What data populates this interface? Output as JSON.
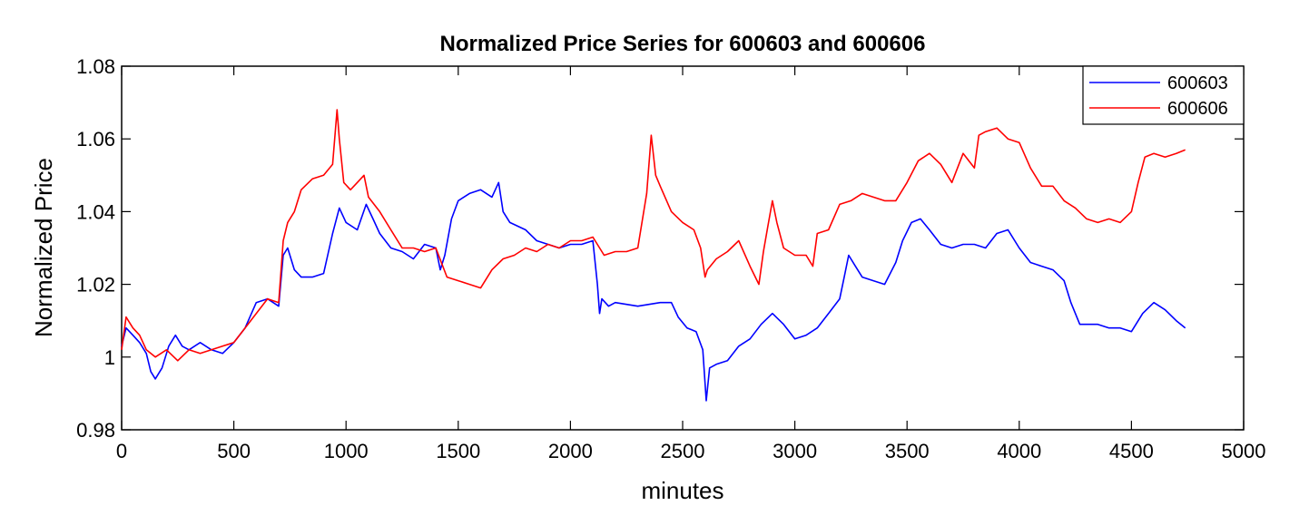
{
  "chart_data": {
    "type": "line",
    "title": "Normalized Price Series for 600603 and 600606",
    "xlabel": "minutes",
    "ylabel": "Normalized Price",
    "xlim": [
      0,
      5000
    ],
    "ylim": [
      0.98,
      1.08
    ],
    "xticks": [
      0,
      500,
      1000,
      1500,
      2000,
      2500,
      3000,
      3500,
      4000,
      4500,
      5000
    ],
    "xtick_labels": [
      "0",
      "500",
      "1000",
      "1500",
      "2000",
      "2500",
      "3000",
      "3500",
      "4000",
      "4500",
      "5000"
    ],
    "yticks": [
      0.98,
      1.0,
      1.02,
      1.04,
      1.06,
      1.08
    ],
    "ytick_labels": [
      "0.98",
      "1",
      "1.02",
      "1.04",
      "1.06",
      "1.08"
    ],
    "grid": false,
    "legend_position": "top-right",
    "series": [
      {
        "name": "600603",
        "color": "#0000ff",
        "x": [
          0,
          20,
          50,
          80,
          110,
          130,
          150,
          180,
          210,
          240,
          270,
          300,
          350,
          400,
          450,
          500,
          550,
          600,
          650,
          700,
          720,
          740,
          770,
          800,
          850,
          900,
          940,
          970,
          1000,
          1050,
          1090,
          1120,
          1150,
          1200,
          1250,
          1300,
          1350,
          1400,
          1420,
          1440,
          1470,
          1500,
          1550,
          1600,
          1650,
          1680,
          1700,
          1730,
          1800,
          1850,
          1900,
          1950,
          2000,
          2050,
          2100,
          2120,
          2130,
          2140,
          2170,
          2200,
          2300,
          2400,
          2450,
          2480,
          2520,
          2560,
          2590,
          2605,
          2620,
          2650,
          2700,
          2750,
          2800,
          2850,
          2900,
          2950,
          3000,
          3050,
          3100,
          3150,
          3200,
          3220,
          3240,
          3270,
          3300,
          3350,
          3400,
          3450,
          3480,
          3520,
          3560,
          3600,
          3650,
          3700,
          3750,
          3800,
          3850,
          3900,
          3950,
          4000,
          4050,
          4100,
          4150,
          4200,
          4230,
          4270,
          4300,
          4350,
          4400,
          4450,
          4500,
          4550,
          4600,
          4650,
          4700,
          4740
        ],
        "y": [
          1.003,
          1.008,
          1.006,
          1.004,
          1.001,
          0.996,
          0.994,
          0.997,
          1.003,
          1.006,
          1.003,
          1.002,
          1.004,
          1.002,
          1.001,
          1.004,
          1.008,
          1.015,
          1.016,
          1.014,
          1.028,
          1.03,
          1.024,
          1.022,
          1.022,
          1.023,
          1.034,
          1.041,
          1.037,
          1.035,
          1.042,
          1.038,
          1.034,
          1.03,
          1.029,
          1.027,
          1.031,
          1.03,
          1.024,
          1.028,
          1.038,
          1.043,
          1.045,
          1.046,
          1.044,
          1.048,
          1.04,
          1.037,
          1.035,
          1.032,
          1.031,
          1.03,
          1.031,
          1.031,
          1.032,
          1.02,
          1.012,
          1.016,
          1.014,
          1.015,
          1.014,
          1.015,
          1.015,
          1.011,
          1.008,
          1.007,
          1.002,
          0.988,
          0.997,
          0.998,
          0.999,
          1.003,
          1.005,
          1.009,
          1.012,
          1.009,
          1.005,
          1.006,
          1.008,
          1.012,
          1.016,
          1.022,
          1.028,
          1.025,
          1.022,
          1.021,
          1.02,
          1.026,
          1.032,
          1.037,
          1.038,
          1.035,
          1.031,
          1.03,
          1.031,
          1.031,
          1.03,
          1.034,
          1.035,
          1.03,
          1.026,
          1.025,
          1.024,
          1.021,
          1.015,
          1.009,
          1.009,
          1.009,
          1.008,
          1.008,
          1.007,
          1.012,
          1.015,
          1.013,
          1.01,
          1.008
        ],
        "label_note": ""
      },
      {
        "name": "600606",
        "color": "#ff0000",
        "x": [
          0,
          20,
          50,
          80,
          110,
          150,
          200,
          250,
          300,
          350,
          400,
          450,
          500,
          550,
          600,
          650,
          700,
          720,
          740,
          770,
          800,
          850,
          900,
          940,
          960,
          970,
          990,
          1020,
          1050,
          1080,
          1100,
          1150,
          1200,
          1250,
          1300,
          1350,
          1400,
          1450,
          1500,
          1550,
          1600,
          1650,
          1700,
          1750,
          1800,
          1850,
          1900,
          1950,
          2000,
          2050,
          2100,
          2150,
          2200,
          2250,
          2300,
          2340,
          2360,
          2380,
          2400,
          2450,
          2500,
          2550,
          2580,
          2600,
          2610,
          2650,
          2700,
          2750,
          2800,
          2840,
          2860,
          2880,
          2900,
          2920,
          2950,
          3000,
          3050,
          3080,
          3100,
          3150,
          3200,
          3250,
          3300,
          3350,
          3400,
          3450,
          3500,
          3550,
          3600,
          3650,
          3700,
          3750,
          3800,
          3820,
          3850,
          3900,
          3950,
          4000,
          4050,
          4100,
          4150,
          4200,
          4250,
          4300,
          4350,
          4400,
          4450,
          4500,
          4530,
          4560,
          4600,
          4650,
          4700,
          4740
        ],
        "y": [
          1.002,
          1.011,
          1.008,
          1.006,
          1.002,
          1.0,
          1.002,
          0.999,
          1.002,
          1.001,
          1.002,
          1.003,
          1.004,
          1.008,
          1.012,
          1.016,
          1.015,
          1.032,
          1.037,
          1.04,
          1.046,
          1.049,
          1.05,
          1.053,
          1.068,
          1.06,
          1.048,
          1.046,
          1.048,
          1.05,
          1.044,
          1.04,
          1.035,
          1.03,
          1.03,
          1.029,
          1.03,
          1.022,
          1.021,
          1.02,
          1.019,
          1.024,
          1.027,
          1.028,
          1.03,
          1.029,
          1.031,
          1.03,
          1.032,
          1.032,
          1.033,
          1.028,
          1.029,
          1.029,
          1.03,
          1.045,
          1.061,
          1.05,
          1.047,
          1.04,
          1.037,
          1.035,
          1.03,
          1.022,
          1.024,
          1.027,
          1.029,
          1.032,
          1.025,
          1.02,
          1.029,
          1.036,
          1.043,
          1.037,
          1.03,
          1.028,
          1.028,
          1.025,
          1.034,
          1.035,
          1.042,
          1.043,
          1.045,
          1.044,
          1.043,
          1.043,
          1.048,
          1.054,
          1.056,
          1.053,
          1.048,
          1.056,
          1.052,
          1.061,
          1.062,
          1.063,
          1.06,
          1.059,
          1.052,
          1.047,
          1.047,
          1.043,
          1.041,
          1.038,
          1.037,
          1.038,
          1.037,
          1.04,
          1.048,
          1.055,
          1.056,
          1.055,
          1.056,
          1.057
        ],
        "label_note": ""
      }
    ]
  }
}
